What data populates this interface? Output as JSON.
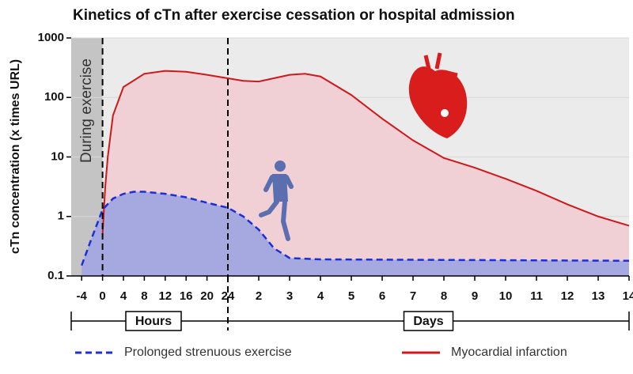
{
  "chart_data": {
    "type": "line",
    "title": "Kinetics of cTn after exercise cessation or hospital admission",
    "ylabel": "cTn concentration (x times URL)",
    "log_y": true,
    "ylim": [
      0.1,
      1000
    ],
    "yticks": [
      0.1,
      1,
      10,
      100,
      1000
    ],
    "grid": true,
    "xlim": [
      -6,
      336
    ],
    "x_segments": [
      {
        "label": "Hours",
        "xlim": [
          -6,
          24
        ]
      },
      {
        "label": "Days",
        "xlim": [
          24,
          336
        ]
      }
    ],
    "xticks": [
      -4,
      0,
      4,
      8,
      12,
      16,
      20,
      24,
      {
        "value": 48,
        "label": "2"
      },
      {
        "value": 72,
        "label": "3"
      },
      {
        "value": 96,
        "label": "4"
      },
      {
        "value": 120,
        "label": "5"
      },
      {
        "value": 144,
        "label": "6"
      },
      {
        "value": 168,
        "label": "7"
      },
      {
        "value": 192,
        "label": "8"
      },
      {
        "value": 216,
        "label": "9"
      },
      {
        "value": 240,
        "label": "10"
      },
      {
        "value": 264,
        "label": "11"
      },
      {
        "value": 288,
        "label": "12"
      },
      {
        "value": 312,
        "label": "13"
      },
      {
        "value": 336,
        "label": "14"
      }
    ],
    "shaded_region": {
      "label": "During exercise",
      "range": [
        -6,
        0
      ],
      "color": "#c4c4c4"
    },
    "vlines": [
      0,
      24
    ],
    "legend": "bottom",
    "series": [
      {
        "name": "Prolonged strenuous exercise",
        "color": "#1a2fd6",
        "fill": "#a6a9e0",
        "dashed": true,
        "x": [
          -4,
          -2,
          0,
          2,
          4,
          6,
          8,
          12,
          16,
          20,
          24,
          36,
          48,
          60,
          72,
          96,
          336
        ],
        "values": [
          0.15,
          0.45,
          1.3,
          2.0,
          2.4,
          2.6,
          2.6,
          2.4,
          2.1,
          1.7,
          1.4,
          1.0,
          0.6,
          0.29,
          0.2,
          0.19,
          0.18
        ]
      },
      {
        "name": "Myocardial infarction",
        "color": "#d01818",
        "fill": "#f1d0d5",
        "dashed": false,
        "x": [
          0,
          0.5,
          1,
          2,
          4,
          8,
          12,
          16,
          20,
          24,
          36,
          48,
          72,
          84,
          96,
          120,
          144,
          168,
          192,
          216,
          240,
          264,
          288,
          312,
          336
        ],
        "values": [
          0.5,
          3,
          10,
          50,
          150,
          250,
          280,
          270,
          240,
          210,
          190,
          185,
          240,
          250,
          225,
          110,
          44,
          19,
          9.6,
          6.6,
          4.3,
          2.7,
          1.6,
          1.0,
          0.7
        ]
      }
    ]
  }
}
